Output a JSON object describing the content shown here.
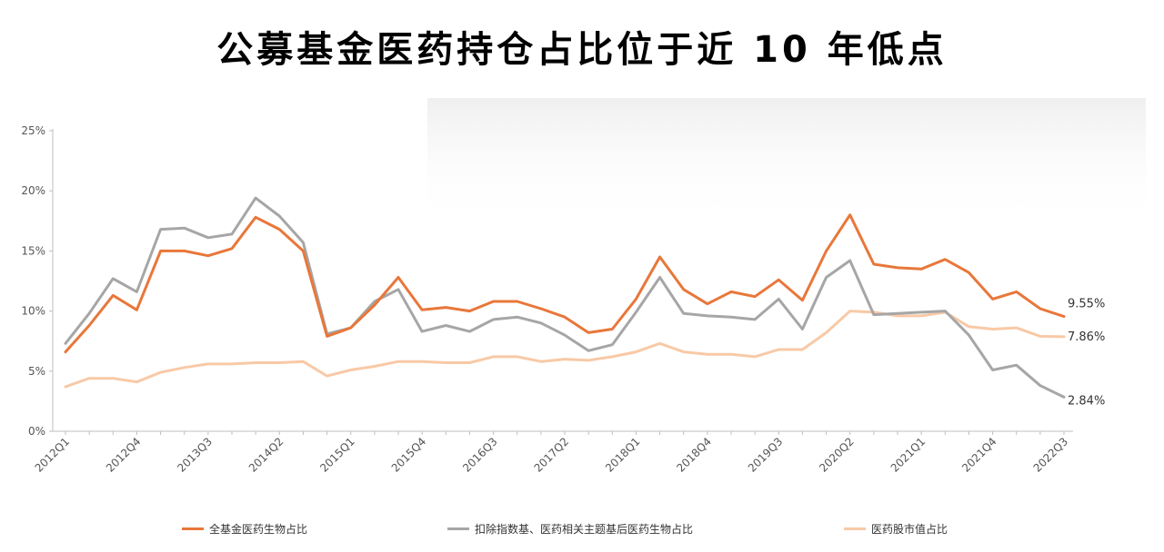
{
  "page": {
    "title": "公募基金医药持仓占比位于近 10 年低点"
  },
  "chart_data": {
    "type": "line",
    "title": "公募基金医药持仓占比位于近 10 年低点",
    "ylim": [
      0,
      25
    ],
    "yticks": [
      "0%",
      "5%",
      "10%",
      "15%",
      "20%",
      "25%"
    ],
    "ytick_values": [
      0,
      5,
      10,
      15,
      20,
      25
    ],
    "x": [
      "2012Q1",
      "2012Q2",
      "2012Q3",
      "2012Q4",
      "2013Q1",
      "2013Q2",
      "2013Q3",
      "2013Q4",
      "2014Q1",
      "2014Q2",
      "2014Q3",
      "2014Q4",
      "2015Q1",
      "2015Q2",
      "2015Q3",
      "2015Q4",
      "2016Q1",
      "2016Q2",
      "2016Q3",
      "2016Q4",
      "2017Q1",
      "2017Q2",
      "2017Q3",
      "2017Q4",
      "2018Q1",
      "2018Q2",
      "2018Q3",
      "2018Q4",
      "2019Q1",
      "2019Q2",
      "2019Q3",
      "2019Q4",
      "2020Q1",
      "2020Q2",
      "2020Q3",
      "2020Q4",
      "2021Q1",
      "2021Q2",
      "2021Q3",
      "2021Q4",
      "2022Q1",
      "2022Q2",
      "2022Q3"
    ],
    "xtick_labels": [
      "2012Q1",
      "2012Q4",
      "2013Q3",
      "2014Q2",
      "2015Q1",
      "2015Q4",
      "2016Q3",
      "2017Q2",
      "2018Q1",
      "2018Q4",
      "2019Q3",
      "2020Q2",
      "2021Q1",
      "2021Q4",
      "2022Q3"
    ],
    "grid": false,
    "legend_position": "bottom",
    "series": [
      {
        "name": "全基金医药生物占比",
        "color": "#E8773A",
        "end_label": "9.55%",
        "values": [
          6.6,
          8.8,
          11.3,
          10.1,
          15.0,
          15.0,
          14.6,
          15.2,
          17.8,
          16.8,
          15.0,
          7.9,
          8.6,
          10.5,
          12.8,
          10.1,
          10.3,
          10.0,
          10.8,
          10.8,
          10.2,
          9.5,
          8.2,
          8.5,
          11.0,
          14.5,
          11.8,
          10.6,
          11.6,
          11.2,
          12.6,
          10.9,
          15.0,
          18.0,
          13.9,
          13.6,
          13.5,
          14.3,
          13.2,
          11.0,
          11.6,
          10.2,
          9.55
        ]
      },
      {
        "name": "扣除指数基、医药相关主题基后医药生物占比",
        "color": "#A6A6A6",
        "end_label": "2.84%",
        "values": [
          7.3,
          9.8,
          12.7,
          11.6,
          16.8,
          16.9,
          16.1,
          16.4,
          19.4,
          17.9,
          15.7,
          8.1,
          8.6,
          10.8,
          11.8,
          8.3,
          8.8,
          8.3,
          9.3,
          9.5,
          9.0,
          8.0,
          6.7,
          7.2,
          9.9,
          12.8,
          9.8,
          9.6,
          9.5,
          9.3,
          11.0,
          8.5,
          12.8,
          14.2,
          9.7,
          9.8,
          9.9,
          10.0,
          8.0,
          5.1,
          5.5,
          3.8,
          2.84
        ]
      },
      {
        "name": "医药股市值占比",
        "color": "#F8C9A6",
        "end_label": "7.86%",
        "values": [
          3.7,
          4.4,
          4.4,
          4.1,
          4.9,
          5.3,
          5.6,
          5.6,
          5.7,
          5.7,
          5.8,
          4.6,
          5.1,
          5.4,
          5.8,
          5.8,
          5.7,
          5.7,
          6.2,
          6.2,
          5.8,
          6.0,
          5.9,
          6.2,
          6.6,
          7.3,
          6.6,
          6.4,
          6.4,
          6.2,
          6.8,
          6.8,
          8.2,
          10.0,
          9.9,
          9.6,
          9.6,
          9.9,
          8.7,
          8.5,
          8.6,
          7.9,
          7.86
        ]
      }
    ]
  }
}
